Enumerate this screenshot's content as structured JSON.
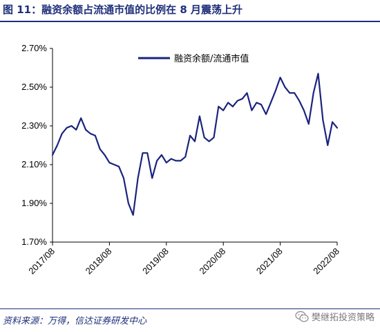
{
  "figure": {
    "title": "图 11：融资余额占流通市值的比例在 8 月震荡上升",
    "source": "资料来源：万得，信达证券研发中心",
    "watermark_text": "樊继拓投资策略",
    "watermark_icon": "wechat-icon"
  },
  "colors": {
    "line": "#1a237e",
    "title": "#1f2f7a"
  },
  "chart_data": {
    "type": "line",
    "title": "",
    "xlabel": "",
    "ylabel": "",
    "ylim": [
      1.7,
      2.7
    ],
    "yticks": [
      "2.70%",
      "2.50%",
      "2.30%",
      "2.10%",
      "1.90%",
      "1.70%"
    ],
    "ytick_values": [
      2.7,
      2.5,
      2.3,
      2.1,
      1.9,
      1.7
    ],
    "xticks": [
      "2017/08",
      "2018/08",
      "2019/08",
      "2020/08",
      "2021/08",
      "2022/08"
    ],
    "x_range": [
      "2017/08",
      "2022/08"
    ],
    "legend_position": "top-left",
    "grid": false,
    "series": [
      {
        "name": "融资余额/流通市值",
        "x": [
          "2017/08",
          "2017/09",
          "2017/10",
          "2017/11",
          "2017/12",
          "2018/01",
          "2018/02",
          "2018/03",
          "2018/04",
          "2018/05",
          "2018/06",
          "2018/07",
          "2018/08",
          "2018/09",
          "2018/10",
          "2018/11",
          "2018/12",
          "2019/01",
          "2019/02",
          "2019/03",
          "2019/04",
          "2019/05",
          "2019/06",
          "2019/07",
          "2019/08",
          "2019/09",
          "2019/10",
          "2019/11",
          "2019/12",
          "2020/01",
          "2020/02",
          "2020/03",
          "2020/04",
          "2020/05",
          "2020/06",
          "2020/07",
          "2020/08",
          "2020/09",
          "2020/10",
          "2020/11",
          "2020/12",
          "2021/01",
          "2021/02",
          "2021/03",
          "2021/04",
          "2021/05",
          "2021/06",
          "2021/07",
          "2021/08",
          "2021/09",
          "2021/10",
          "2021/11",
          "2021/12",
          "2022/01",
          "2022/02",
          "2022/03",
          "2022/04",
          "2022/05",
          "2022/06",
          "2022/07",
          "2022/08"
        ],
        "values": [
          2.15,
          2.2,
          2.26,
          2.29,
          2.3,
          2.28,
          2.34,
          2.28,
          2.26,
          2.25,
          2.18,
          2.15,
          2.11,
          2.1,
          2.09,
          2.03,
          1.9,
          1.84,
          2.03,
          2.16,
          2.16,
          2.03,
          2.12,
          2.15,
          2.11,
          2.13,
          2.12,
          2.12,
          2.14,
          2.25,
          2.22,
          2.35,
          2.24,
          2.22,
          2.24,
          2.4,
          2.38,
          2.42,
          2.4,
          2.43,
          2.44,
          2.47,
          2.38,
          2.42,
          2.41,
          2.36,
          2.42,
          2.48,
          2.55,
          2.5,
          2.47,
          2.47,
          2.43,
          2.38,
          2.31,
          2.47,
          2.57,
          2.33,
          2.2,
          2.32,
          2.29
        ]
      }
    ]
  }
}
